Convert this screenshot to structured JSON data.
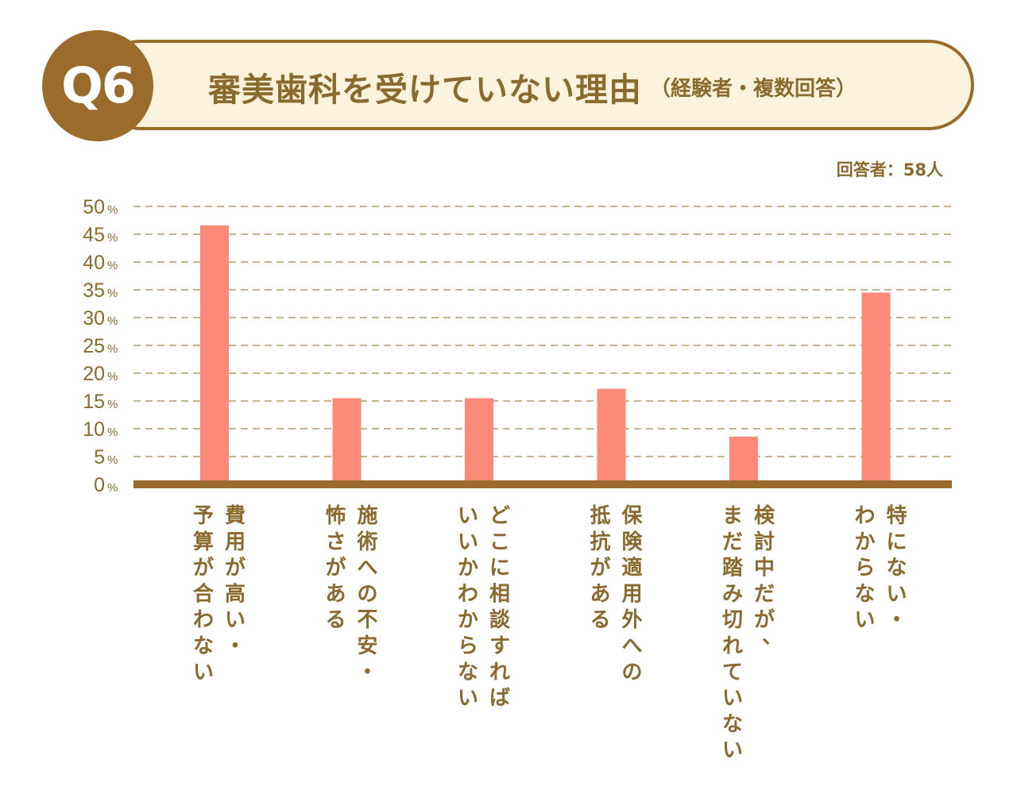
{
  "badge": {
    "label": "Q6"
  },
  "header": {
    "title": "審美歯科を受けていない理由",
    "subtitle": "（経験者・複数回答）"
  },
  "respondents": "回答者：58人",
  "colors": {
    "brand": "#9a6b2b",
    "header_fill": "#fdf3dc",
    "text": "#8a6a2e",
    "bar": "#fd8a78",
    "grid": "#c8b28c"
  },
  "chart_data": {
    "type": "bar",
    "title": "審美歯科を受けていない理由",
    "xlabel": "",
    "ylabel": "",
    "ylim": [
      0,
      50
    ],
    "yticks": [
      0,
      5,
      10,
      15,
      20,
      25,
      30,
      35,
      40,
      45,
      50
    ],
    "ytick_suffix": "%",
    "grid": true,
    "categories": [
      [
        "費用が高い・",
        "予算が合わない"
      ],
      [
        "施術への不安・",
        "怖さがある"
      ],
      [
        "どこに相談すれば",
        "いいかわからない"
      ],
      [
        "保険適用外への",
        "抵抗がある"
      ],
      [
        "検討中だが、",
        "まだ踏み切れていない"
      ],
      [
        "特にない・",
        "わからない"
      ]
    ],
    "values": [
      46.6,
      15.5,
      15.5,
      17.2,
      8.6,
      34.5
    ]
  }
}
